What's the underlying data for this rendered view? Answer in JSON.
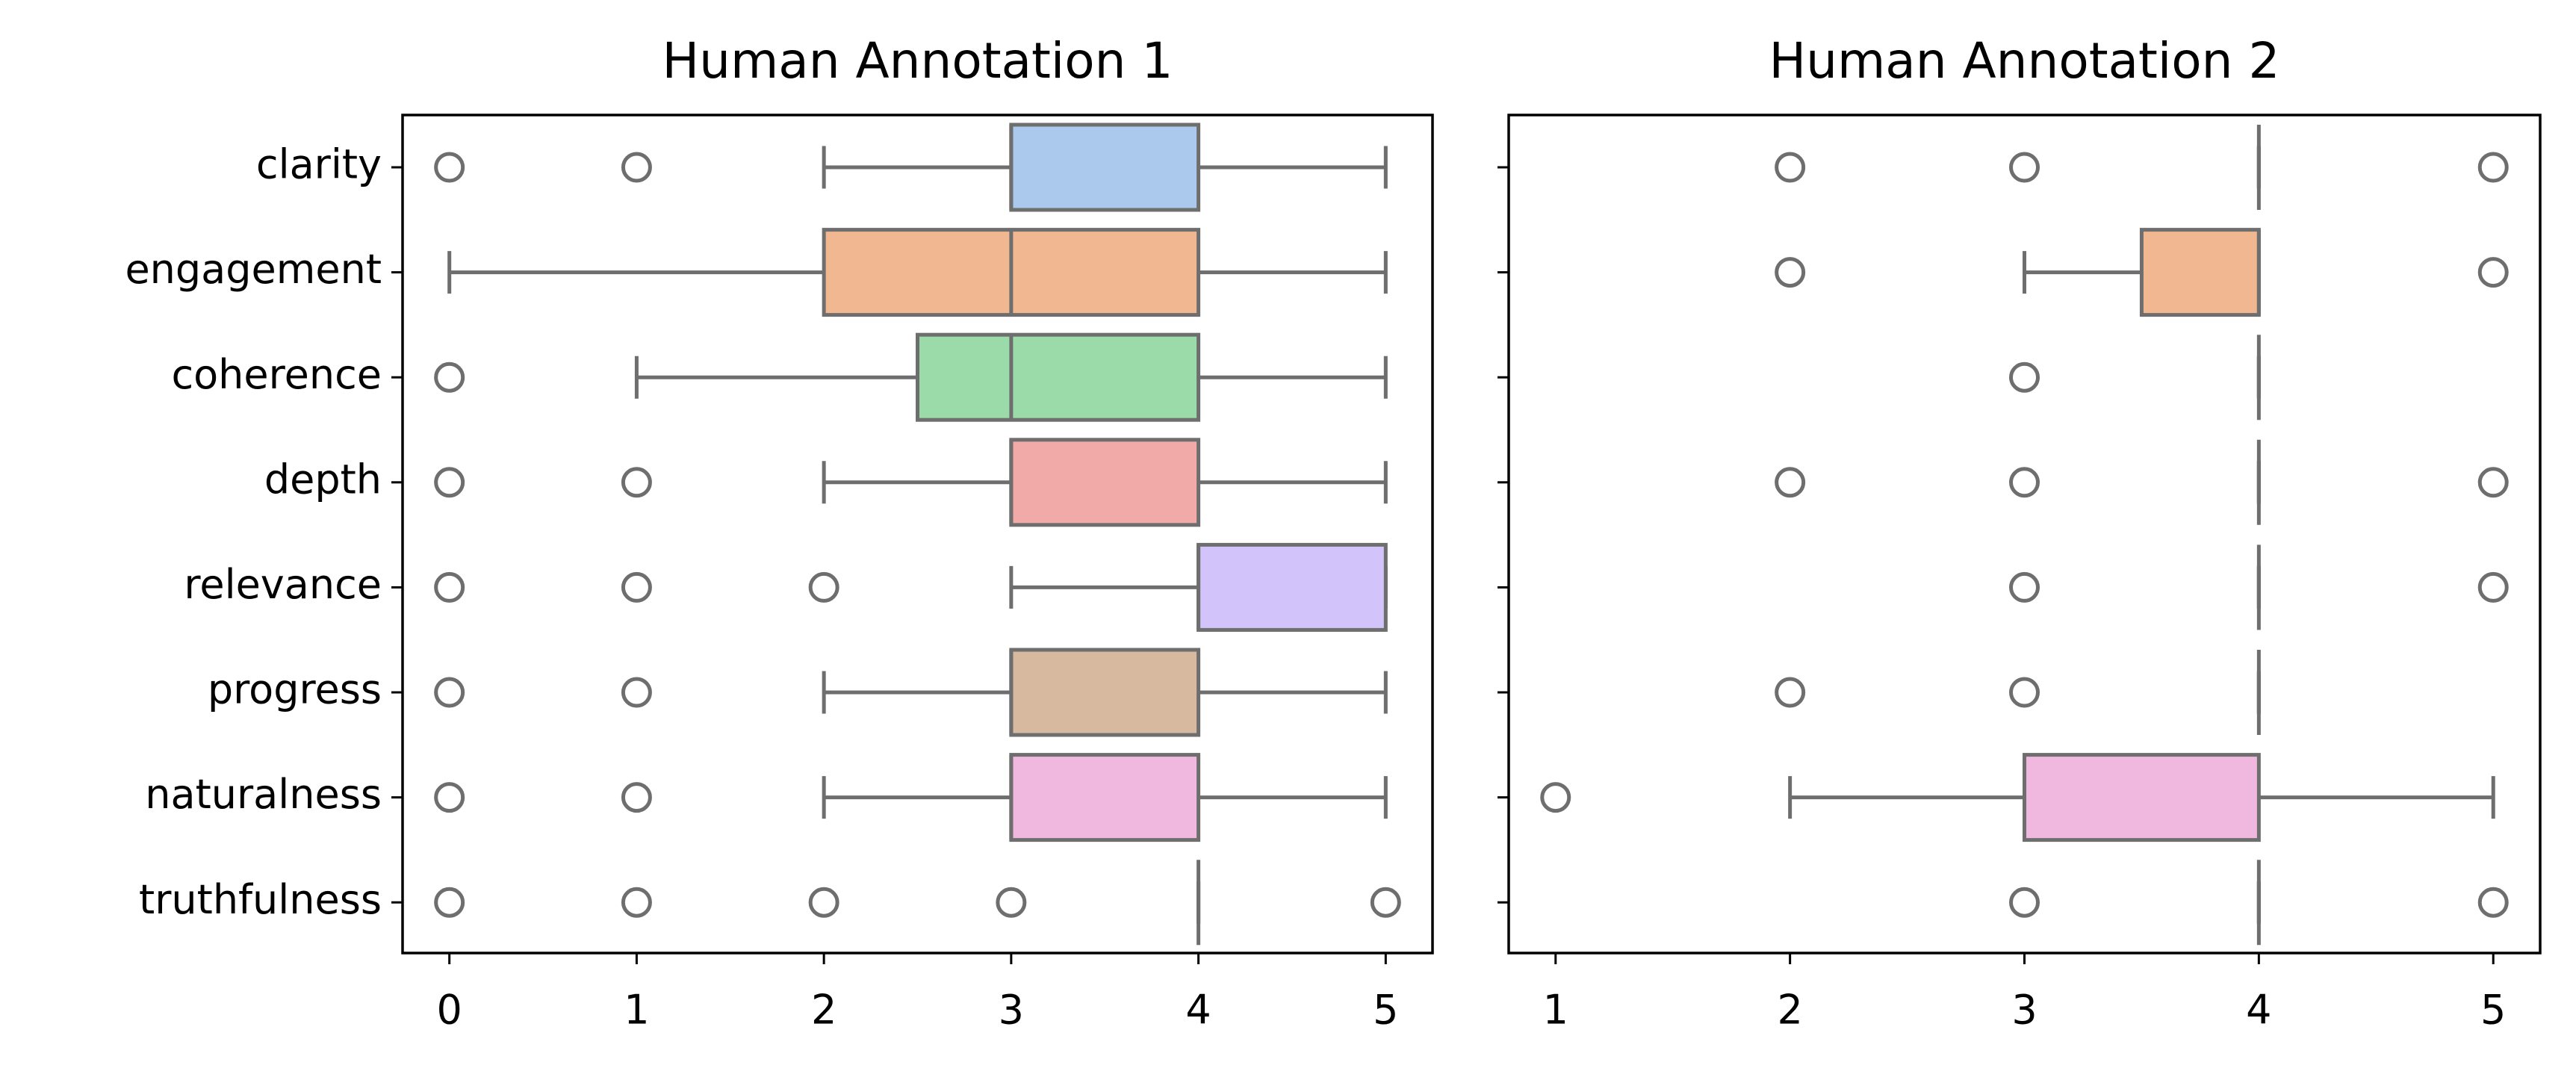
{
  "chart_data": [
    {
      "type": "box",
      "title": "Human Annotation 1",
      "categories": [
        "clarity",
        "engagement",
        "coherence",
        "depth",
        "relevance",
        "progress",
        "naturalness",
        "truthfulness"
      ],
      "xlim": [
        -0.25,
        5.25
      ],
      "xticks": [
        0,
        1,
        2,
        3,
        4,
        5
      ],
      "boxes": [
        {
          "whislo": 2,
          "q1": 3,
          "med": 3,
          "q3": 4,
          "whishi": 5,
          "fliers": [
            0,
            1
          ],
          "color": "#abc9ed"
        },
        {
          "whislo": 0,
          "q1": 2,
          "med": 3,
          "q3": 4,
          "whishi": 5,
          "fliers": [],
          "color": "#f1b790"
        },
        {
          "whislo": 1,
          "q1": 2.5,
          "med": 3,
          "q3": 4,
          "whishi": 5,
          "fliers": [
            0
          ],
          "color": "#9adba9"
        },
        {
          "whislo": 2,
          "q1": 3,
          "med": 3,
          "q3": 4,
          "whishi": 5,
          "fliers": [
            0,
            1
          ],
          "color": "#f2aaa8"
        },
        {
          "whislo": 3,
          "q1": 4,
          "med": 4,
          "q3": 5,
          "whishi": 5,
          "fliers": [
            0,
            1,
            2
          ],
          "color": "#d2c4fa"
        },
        {
          "whislo": 2,
          "q1": 3,
          "med": 3,
          "q3": 4,
          "whishi": 5,
          "fliers": [
            0,
            1
          ],
          "color": "#d6b99f"
        },
        {
          "whislo": 2,
          "q1": 3,
          "med": 3,
          "q3": 4,
          "whishi": 5,
          "fliers": [
            0,
            1
          ],
          "color": "#f1b8df"
        },
        {
          "whislo": 4,
          "q1": 4,
          "med": 4,
          "q3": 4,
          "whishi": 4,
          "fliers": [
            0,
            1,
            2,
            3,
            5
          ]
        }
      ]
    },
    {
      "type": "box",
      "title": "Human Annotation 2",
      "xlim": [
        0.8,
        5.2
      ],
      "xticks": [
        1,
        2,
        3,
        4,
        5
      ],
      "boxes": [
        {
          "whislo": 4,
          "q1": 4,
          "med": 4,
          "q3": 4,
          "whishi": 4,
          "fliers": [
            2,
            3,
            5
          ]
        },
        {
          "whislo": 3,
          "q1": 3.5,
          "med": 4,
          "q3": 4,
          "whishi": 4,
          "fliers": [
            2,
            5
          ],
          "color": "#f1b790"
        },
        {
          "whislo": 4,
          "q1": 4,
          "med": 4,
          "q3": 4,
          "whishi": 4,
          "fliers": [
            3
          ]
        },
        {
          "whislo": 4,
          "q1": 4,
          "med": 4,
          "q3": 4,
          "whishi": 4,
          "fliers": [
            2,
            3,
            5
          ]
        },
        {
          "whislo": 4,
          "q1": 4,
          "med": 4,
          "q3": 4,
          "whishi": 4,
          "fliers": [
            3,
            5
          ]
        },
        {
          "whislo": 4,
          "q1": 4,
          "med": 4,
          "q3": 4,
          "whishi": 4,
          "fliers": [
            2,
            3
          ]
        },
        {
          "whislo": 2,
          "q1": 3,
          "med": 3,
          "q3": 4,
          "whishi": 5,
          "fliers": [
            1
          ],
          "color": "#f1b8df"
        },
        {
          "whislo": 4,
          "q1": 4,
          "med": 4,
          "q3": 4,
          "whishi": 4,
          "fliers": [
            3,
            5
          ]
        }
      ]
    }
  ]
}
